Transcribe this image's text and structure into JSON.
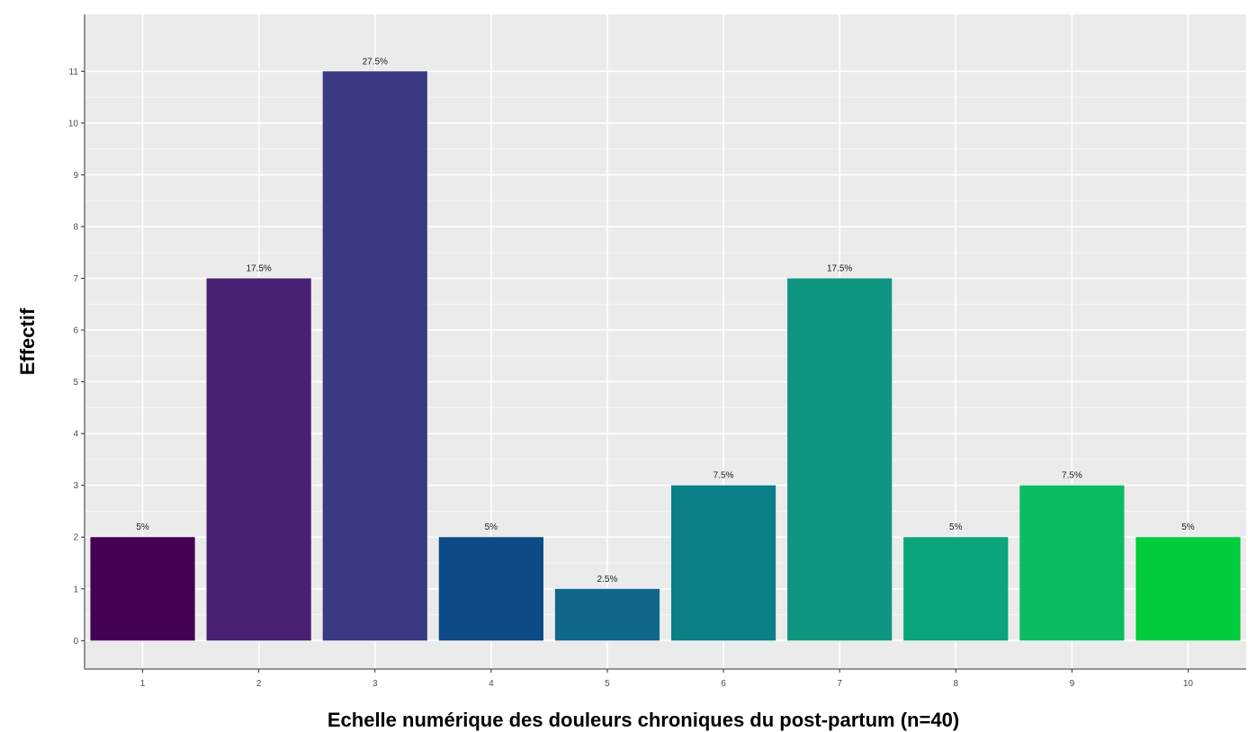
{
  "chart_data": {
    "type": "bar",
    "title": "",
    "xlabel": "Echelle numérique des douleurs chroniques du post-partum (n=40)",
    "ylabel": "Effectif",
    "categories": [
      "1",
      "2",
      "3",
      "4",
      "5",
      "6",
      "7",
      "8",
      "9",
      "10"
    ],
    "values": [
      2,
      7,
      11,
      2,
      1,
      3,
      7,
      2,
      3,
      2
    ],
    "labels": [
      "5%",
      "17.5%",
      "27.5%",
      "5%",
      "2.5%",
      "7.5%",
      "17.5%",
      "5%",
      "7.5%",
      "5%"
    ],
    "colors": [
      "#440154",
      "#482173",
      "#3a3a84",
      "#0d4a86",
      "#10678a",
      "#0b7f87",
      "#0f9681",
      "#0aa57a",
      "#0dbb63",
      "#00cc3c"
    ],
    "yticks": [
      0,
      1,
      2,
      3,
      4,
      5,
      6,
      7,
      8,
      9,
      10,
      11
    ],
    "ylim": [
      -0.55,
      12.1
    ],
    "grid": true,
    "panel_background": "#ebebeb",
    "legend": "none"
  }
}
